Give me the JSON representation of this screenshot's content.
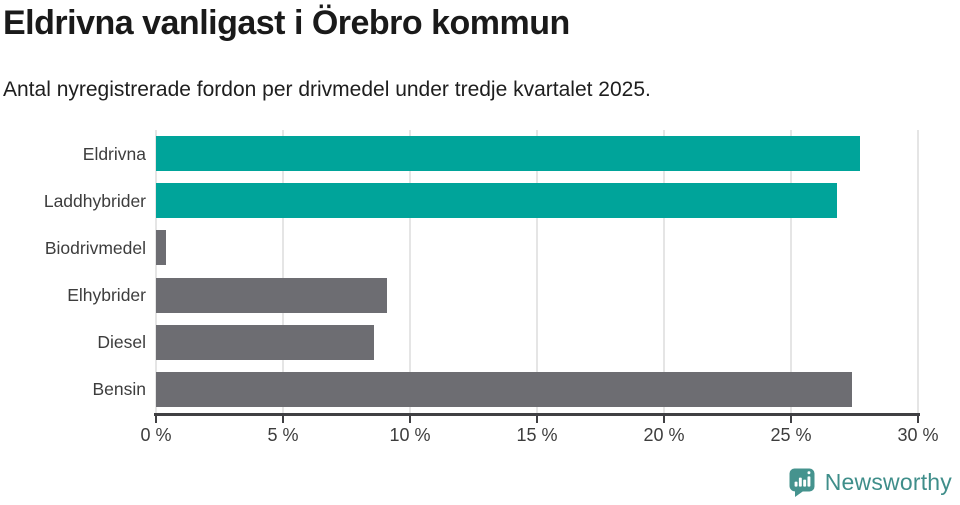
{
  "header": {
    "title": "Eldrivna vanligast i Örebro kommun",
    "subtitle": "Antal nyregistrerade fordon per drivmedel under tredje kvartalet 2025."
  },
  "chart_data": {
    "type": "bar",
    "orientation": "horizontal",
    "title": "Eldrivna vanligast i Örebro kommun",
    "subtitle": "Antal nyregistrerade fordon per drivmedel under tredje kvartalet 2025.",
    "categories": [
      "Eldrivna",
      "Laddhybrider",
      "Biodrivmedel",
      "Elhybrider",
      "Diesel",
      "Bensin"
    ],
    "values": [
      27.7,
      26.8,
      0.4,
      9.1,
      8.6,
      27.4
    ],
    "unit": "%",
    "bar_colors": [
      "#00a49a",
      "#00a49a",
      "#6d6d72",
      "#6d6d72",
      "#6d6d72",
      "#6d6d72"
    ],
    "xlim": [
      0,
      30
    ],
    "x_ticks": [
      0,
      5,
      10,
      15,
      20,
      25,
      30
    ],
    "x_tick_suffix": " %",
    "xlabel": "",
    "ylabel": "",
    "grid": true,
    "legend": false
  },
  "colors": {
    "accent_teal": "#00a49a",
    "neutral_gray": "#6d6d72",
    "axis": "#404043",
    "grid": "#e5e5e5",
    "brand_teal": "#3f8e8a"
  },
  "footer": {
    "brand": "Newsworthy"
  }
}
